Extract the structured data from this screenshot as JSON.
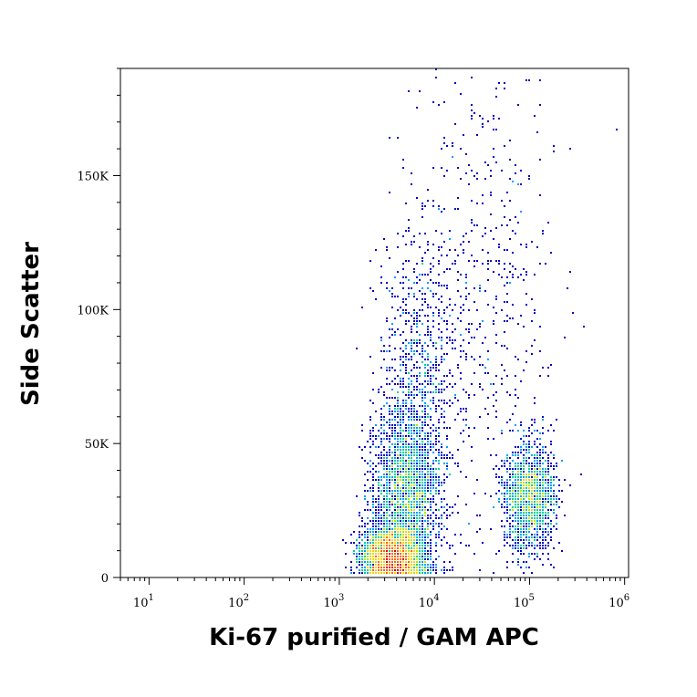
{
  "chart_data": {
    "type": "scatter",
    "title": "",
    "xlabel": "Ki-67 purified / GAM APC",
    "ylabel": "Side Scatter",
    "x_scale": "log",
    "xlim": [
      5,
      1100000
    ],
    "ylim": [
      0,
      190000
    ],
    "x_ticks": [
      {
        "value": 10,
        "base": "10",
        "exp": "1"
      },
      {
        "value": 100,
        "base": "10",
        "exp": "2"
      },
      {
        "value": 1000,
        "base": "10",
        "exp": "3"
      },
      {
        "value": 10000,
        "base": "10",
        "exp": "4"
      },
      {
        "value": 100000,
        "base": "10",
        "exp": "5"
      },
      {
        "value": 1000000,
        "base": "10",
        "exp": "6"
      }
    ],
    "y_ticks": [
      {
        "value": 0,
        "label": "0"
      },
      {
        "value": 50000,
        "label": "50K"
      },
      {
        "value": 100000,
        "label": "100K"
      },
      {
        "value": 150000,
        "label": "150K"
      }
    ],
    "grid": false,
    "legend": "none",
    "density_colors": [
      "#0000c8",
      "#00a0ff",
      "#00d28c",
      "#b4e600",
      "#ffd200",
      "#ff6400",
      "#dc0000"
    ],
    "populations": [
      {
        "x": 3500,
        "y": 8000,
        "spread_x_decades": 0.16,
        "spread_y": 5000,
        "count": 2600
      },
      {
        "x": 5000,
        "y": 30000,
        "spread_x_decades": 0.18,
        "spread_y": 17000,
        "count": 2200
      },
      {
        "x": 7000,
        "y": 75000,
        "spread_x_decades": 0.22,
        "spread_y": 28000,
        "count": 900
      },
      {
        "x": 100000,
        "y": 30000,
        "spread_x_decades": 0.14,
        "spread_y": 10000,
        "count": 1500
      },
      {
        "x": 40000,
        "y": 110000,
        "spread_x_decades": 0.35,
        "spread_y": 45000,
        "count": 450
      }
    ]
  }
}
